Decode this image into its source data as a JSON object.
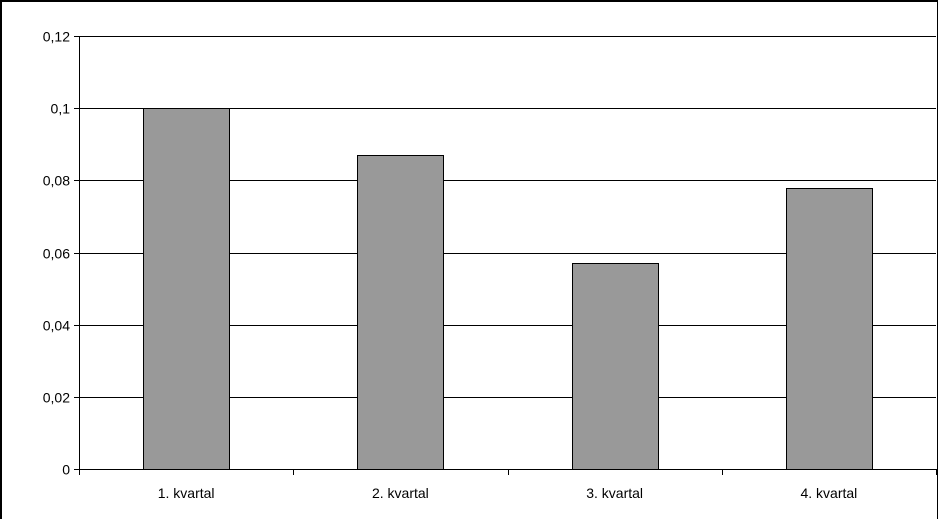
{
  "chart_data": {
    "type": "bar",
    "categories": [
      "1. kvartal",
      "2. kvartal",
      "3. kvartal",
      "4. kvartal"
    ],
    "values": [
      0.1,
      0.087,
      0.057,
      0.078
    ],
    "ylim": [
      0,
      0.12
    ],
    "yticks": [
      0,
      0.02,
      0.04,
      0.06,
      0.08,
      0.1,
      0.12
    ],
    "ytick_labels": [
      "0",
      "0,02",
      "0,04",
      "0,06",
      "0,08",
      "0,1",
      "0,12"
    ],
    "title": "",
    "xlabel": "",
    "ylabel": "",
    "grid": true,
    "legend": "none",
    "colors": {
      "bar_fill": "#999999",
      "bar_stroke": "#000000",
      "grid": "#000000",
      "axis": "#000000"
    }
  }
}
